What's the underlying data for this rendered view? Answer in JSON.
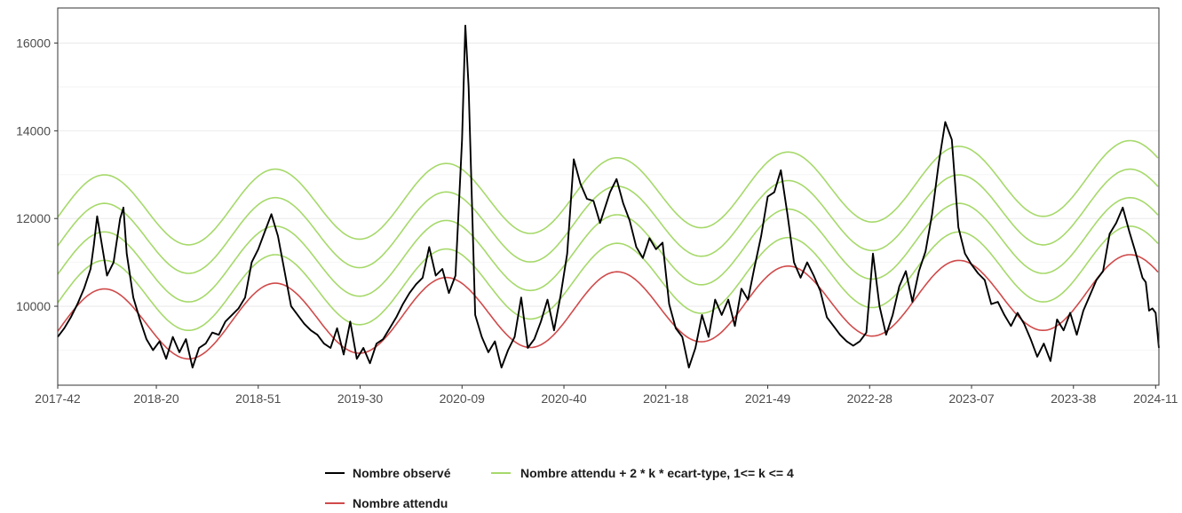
{
  "chart_data": {
    "type": "line",
    "title": "",
    "xlabel": "",
    "ylabel": "",
    "x_ticks": [
      "2017-42",
      "2018-20",
      "2018-51",
      "2019-30",
      "2020-09",
      "2020-40",
      "2021-18",
      "2021-49",
      "2022-28",
      "2023-07",
      "2023-38",
      "2024-11"
    ],
    "y_ticks": [
      10000,
      12000,
      14000,
      16000
    ],
    "ylim": [
      8200,
      16800
    ],
    "x_start": "2017-42",
    "x_end": "2024-11",
    "grid": true,
    "legend_position": "bottom",
    "legend": [
      {
        "label": "Nombre observé",
        "color": "#000000"
      },
      {
        "label": "Nombre attendu + 2 * k * ecart-type, 1<= k <= 4",
        "color": "#a6d96a"
      },
      {
        "label": "Nombre attendu",
        "color": "#d04a4a"
      }
    ],
    "expected_model": {
      "baseline": 9530,
      "annual_trend": 130,
      "amplitude": 830,
      "peak_week": "2018-04",
      "band_step": 650,
      "band_multipliers": [
        1,
        2,
        3,
        4
      ]
    },
    "series": [
      {
        "name": "Nombre observé",
        "color": "#000000",
        "points": [
          [
            "2017-42",
            9300
          ],
          [
            "2017-44",
            9500
          ],
          [
            "2017-46",
            9750
          ],
          [
            "2017-48",
            10050
          ],
          [
            "2017-50",
            10400
          ],
          [
            "2017-52",
            10850
          ],
          [
            "2018-01",
            11400
          ],
          [
            "2018-02",
            12050
          ],
          [
            "2018-03",
            11600
          ],
          [
            "2018-05",
            10700
          ],
          [
            "2018-07",
            11000
          ],
          [
            "2018-09",
            12000
          ],
          [
            "2018-10",
            12250
          ],
          [
            "2018-11",
            11200
          ],
          [
            "2018-13",
            10200
          ],
          [
            "2018-15",
            9700
          ],
          [
            "2018-17",
            9250
          ],
          [
            "2018-19",
            9000
          ],
          [
            "2018-21",
            9200
          ],
          [
            "2018-23",
            8800
          ],
          [
            "2018-25",
            9300
          ],
          [
            "2018-27",
            8950
          ],
          [
            "2018-29",
            9250
          ],
          [
            "2018-31",
            8600
          ],
          [
            "2018-33",
            9050
          ],
          [
            "2018-35",
            9150
          ],
          [
            "2018-37",
            9400
          ],
          [
            "2018-39",
            9350
          ],
          [
            "2018-41",
            9650
          ],
          [
            "2018-43",
            9800
          ],
          [
            "2018-45",
            9950
          ],
          [
            "2018-47",
            10200
          ],
          [
            "2018-49",
            11000
          ],
          [
            "2018-51",
            11300
          ],
          [
            "2019-01",
            11700
          ],
          [
            "2019-03",
            12100
          ],
          [
            "2019-05",
            11600
          ],
          [
            "2019-07",
            10800
          ],
          [
            "2019-09",
            10000
          ],
          [
            "2019-11",
            9800
          ],
          [
            "2019-13",
            9600
          ],
          [
            "2019-15",
            9450
          ],
          [
            "2019-17",
            9350
          ],
          [
            "2019-19",
            9150
          ],
          [
            "2019-21",
            9050
          ],
          [
            "2019-23",
            9500
          ],
          [
            "2019-25",
            8900
          ],
          [
            "2019-27",
            9650
          ],
          [
            "2019-29",
            8800
          ],
          [
            "2019-31",
            9050
          ],
          [
            "2019-33",
            8700
          ],
          [
            "2019-35",
            9150
          ],
          [
            "2019-37",
            9250
          ],
          [
            "2019-39",
            9500
          ],
          [
            "2019-41",
            9750
          ],
          [
            "2019-43",
            10050
          ],
          [
            "2019-45",
            10300
          ],
          [
            "2019-47",
            10500
          ],
          [
            "2019-49",
            10650
          ],
          [
            "2019-51",
            11350
          ],
          [
            "2020-01",
            10700
          ],
          [
            "2020-03",
            10850
          ],
          [
            "2020-05",
            10300
          ],
          [
            "2020-07",
            10700
          ],
          [
            "2020-09",
            13800
          ],
          [
            "2020-10",
            16400
          ],
          [
            "2020-11",
            15000
          ],
          [
            "2020-13",
            9800
          ],
          [
            "2020-15",
            9300
          ],
          [
            "2020-17",
            8950
          ],
          [
            "2020-19",
            9200
          ],
          [
            "2020-21",
            8600
          ],
          [
            "2020-23",
            9000
          ],
          [
            "2020-25",
            9300
          ],
          [
            "2020-27",
            10200
          ],
          [
            "2020-29",
            9050
          ],
          [
            "2020-31",
            9250
          ],
          [
            "2020-33",
            9650
          ],
          [
            "2020-35",
            10150
          ],
          [
            "2020-37",
            9450
          ],
          [
            "2020-39",
            10250
          ],
          [
            "2020-41",
            11200
          ],
          [
            "2020-43",
            13350
          ],
          [
            "2020-45",
            12800
          ],
          [
            "2020-47",
            12450
          ],
          [
            "2020-49",
            12400
          ],
          [
            "2020-51",
            11900
          ],
          [
            "2021-01",
            12600
          ],
          [
            "2021-03",
            12900
          ],
          [
            "2021-05",
            12350
          ],
          [
            "2021-07",
            11950
          ],
          [
            "2021-09",
            11350
          ],
          [
            "2021-11",
            11100
          ],
          [
            "2021-13",
            11550
          ],
          [
            "2021-15",
            11300
          ],
          [
            "2021-17",
            11450
          ],
          [
            "2021-19",
            10050
          ],
          [
            "2021-21",
            9500
          ],
          [
            "2021-23",
            9300
          ],
          [
            "2021-25",
            8600
          ],
          [
            "2021-27",
            9050
          ],
          [
            "2021-29",
            9800
          ],
          [
            "2021-31",
            9300
          ],
          [
            "2021-33",
            10150
          ],
          [
            "2021-35",
            9800
          ],
          [
            "2021-37",
            10150
          ],
          [
            "2021-39",
            9550
          ],
          [
            "2021-41",
            10400
          ],
          [
            "2021-43",
            10150
          ],
          [
            "2021-45",
            10900
          ],
          [
            "2021-47",
            11600
          ],
          [
            "2021-49",
            12500
          ],
          [
            "2021-51",
            12600
          ],
          [
            "2022-01",
            13100
          ],
          [
            "2022-03",
            12100
          ],
          [
            "2022-05",
            11000
          ],
          [
            "2022-07",
            10650
          ],
          [
            "2022-09",
            11000
          ],
          [
            "2022-11",
            10700
          ],
          [
            "2022-13",
            10350
          ],
          [
            "2022-15",
            9750
          ],
          [
            "2022-17",
            9550
          ],
          [
            "2022-19",
            9350
          ],
          [
            "2022-21",
            9200
          ],
          [
            "2022-23",
            9100
          ],
          [
            "2022-25",
            9200
          ],
          [
            "2022-27",
            9400
          ],
          [
            "2022-29",
            11200
          ],
          [
            "2022-31",
            10000
          ],
          [
            "2022-33",
            9350
          ],
          [
            "2022-35",
            9800
          ],
          [
            "2022-37",
            10450
          ],
          [
            "2022-39",
            10800
          ],
          [
            "2022-41",
            10100
          ],
          [
            "2022-43",
            10800
          ],
          [
            "2022-45",
            11250
          ],
          [
            "2022-47",
            12100
          ],
          [
            "2022-49",
            13250
          ],
          [
            "2022-51",
            14200
          ],
          [
            "2023-01",
            13800
          ],
          [
            "2023-03",
            11800
          ],
          [
            "2023-05",
            11200
          ],
          [
            "2023-07",
            10950
          ],
          [
            "2023-09",
            10750
          ],
          [
            "2023-11",
            10600
          ],
          [
            "2023-13",
            10050
          ],
          [
            "2023-15",
            10100
          ],
          [
            "2023-17",
            9800
          ],
          [
            "2023-19",
            9550
          ],
          [
            "2023-21",
            9850
          ],
          [
            "2023-23",
            9600
          ],
          [
            "2023-25",
            9250
          ],
          [
            "2023-27",
            8850
          ],
          [
            "2023-29",
            9150
          ],
          [
            "2023-31",
            8750
          ],
          [
            "2023-33",
            9700
          ],
          [
            "2023-35",
            9450
          ],
          [
            "2023-37",
            9850
          ],
          [
            "2023-39",
            9350
          ],
          [
            "2023-41",
            9900
          ],
          [
            "2023-43",
            10250
          ],
          [
            "2023-45",
            10600
          ],
          [
            "2023-47",
            10800
          ],
          [
            "2023-49",
            11650
          ],
          [
            "2023-51",
            11900
          ],
          [
            "2024-01",
            12250
          ],
          [
            "2024-03",
            11700
          ],
          [
            "2024-05",
            11200
          ],
          [
            "2024-07",
            10650
          ],
          [
            "2024-08",
            10550
          ],
          [
            "2024-09",
            9900
          ],
          [
            "2024-10",
            9950
          ],
          [
            "2024-11",
            9850
          ],
          [
            "2024-12",
            9050
          ]
        ]
      },
      {
        "name": "Nombre attendu",
        "color": "#d04a4a"
      },
      {
        "name": "Nombre attendu + 2 * k * ecart-type, 1<= k <= 4",
        "color": "#a6d96a"
      }
    ]
  }
}
